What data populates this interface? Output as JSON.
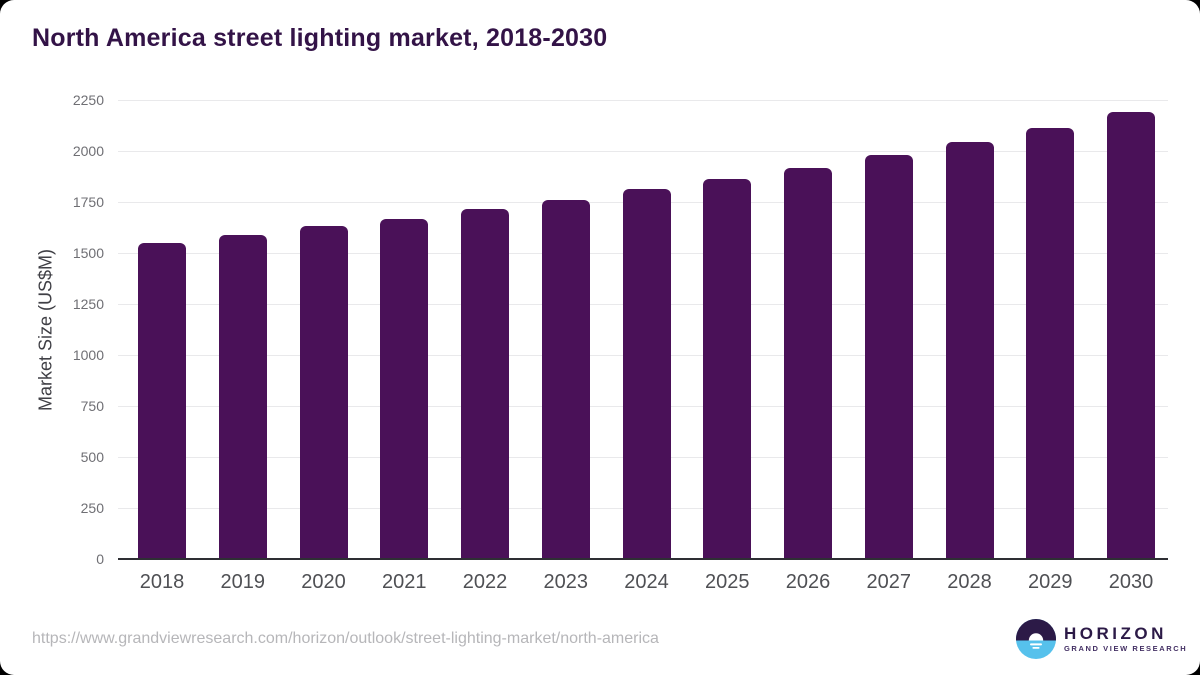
{
  "header": {
    "title": "North America street lighting market, 2018-2030"
  },
  "chart_data": {
    "type": "bar",
    "title": "North America street lighting market, 2018-2030",
    "categories": [
      "2018",
      "2019",
      "2020",
      "2021",
      "2022",
      "2023",
      "2024",
      "2025",
      "2026",
      "2027",
      "2028",
      "2029",
      "2030"
    ],
    "values": [
      1550,
      1590,
      1630,
      1668,
      1714,
      1760,
      1812,
      1864,
      1919,
      1982,
      2046,
      2114,
      2193
    ],
    "xlabel": "",
    "ylabel": "Market Size (US$M)",
    "ylim": [
      0,
      2250
    ],
    "y_ticks": [
      0,
      250,
      500,
      750,
      1000,
      1250,
      1500,
      1750,
      2000,
      2250
    ],
    "grid": true,
    "legend": "none",
    "bar_color": "#4a1158"
  },
  "footer": {
    "source_url": "https://www.grandviewresearch.com/horizon/outlook/street-lighting-market/north-america",
    "logo": {
      "brand": "HORIZON",
      "sub_brand": "GRAND VIEW RESEARCH"
    }
  },
  "colors": {
    "bar": "#4a1158",
    "title": "#331347",
    "gridline": "#e9e9eb",
    "axis_line": "#2e2f34",
    "y_tick_label": "#6f6f74",
    "x_tick_label": "#4f5054",
    "axis_title": "#3f3f45",
    "source_url": "#b6b6b9",
    "logo_purple": "#2c1a47",
    "logo_blue": "#56c1ec"
  }
}
